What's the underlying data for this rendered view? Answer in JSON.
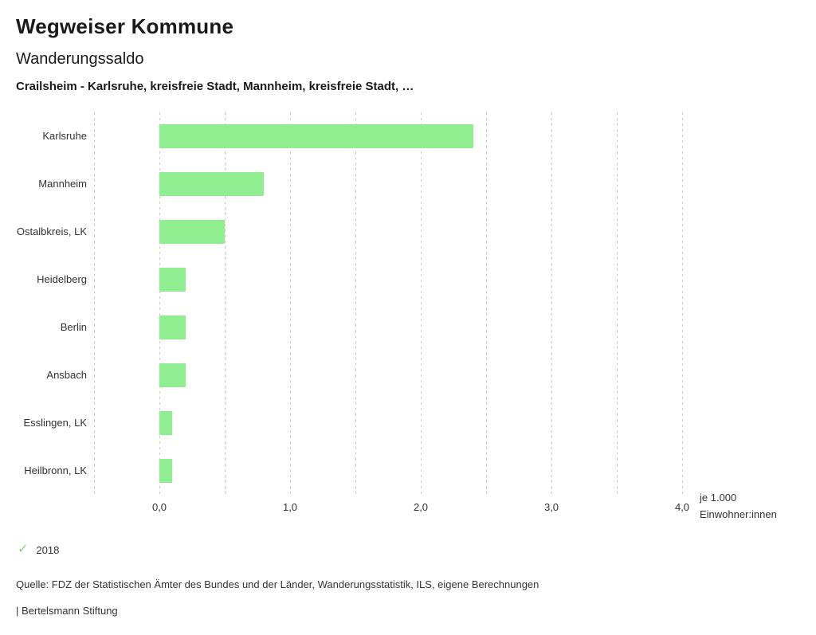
{
  "header": {
    "title": "Wegweiser Kommune",
    "subtitle": "Wanderungssaldo",
    "comparison": "Crailsheim - Karlsruhe, kreisfreie Stadt, Mannheim, kreisfreie Stadt, …"
  },
  "chart_data": {
    "type": "bar",
    "orientation": "horizontal",
    "title": "Wanderungssaldo",
    "categories": [
      "Karlsruhe",
      "Mannheim",
      "Ostalbkreis, LK",
      "Heidelberg",
      "Berlin",
      "Ansbach",
      "Esslingen, LK",
      "Heilbronn, LK"
    ],
    "values": [
      2.4,
      0.8,
      0.5,
      0.2,
      0.2,
      0.2,
      0.1,
      0.1
    ],
    "series_name": "2018",
    "xlim": [
      -0.5,
      4.0
    ],
    "grid_step": 0.5,
    "x_ticks": [
      0,
      1,
      2,
      3,
      4
    ],
    "x_tick_labels": [
      "0,0",
      "1,0",
      "2,0",
      "3,0",
      "4,0"
    ],
    "bar_color": "#90ee90",
    "grid": true,
    "legend_position": "bottom-left",
    "axis_unit_lines": [
      "je 1.000",
      "Einwohner:innen"
    ]
  },
  "legend": {
    "check_icon": "✓",
    "check_color": "#8fd279",
    "label": "2018"
  },
  "footer": {
    "source": "Quelle: FDZ der Statistischen Ämter des Bundes und der Länder, Wanderungsstatistik, ILS, eigene Berechnungen",
    "branding": "| Bertelsmann Stiftung"
  }
}
